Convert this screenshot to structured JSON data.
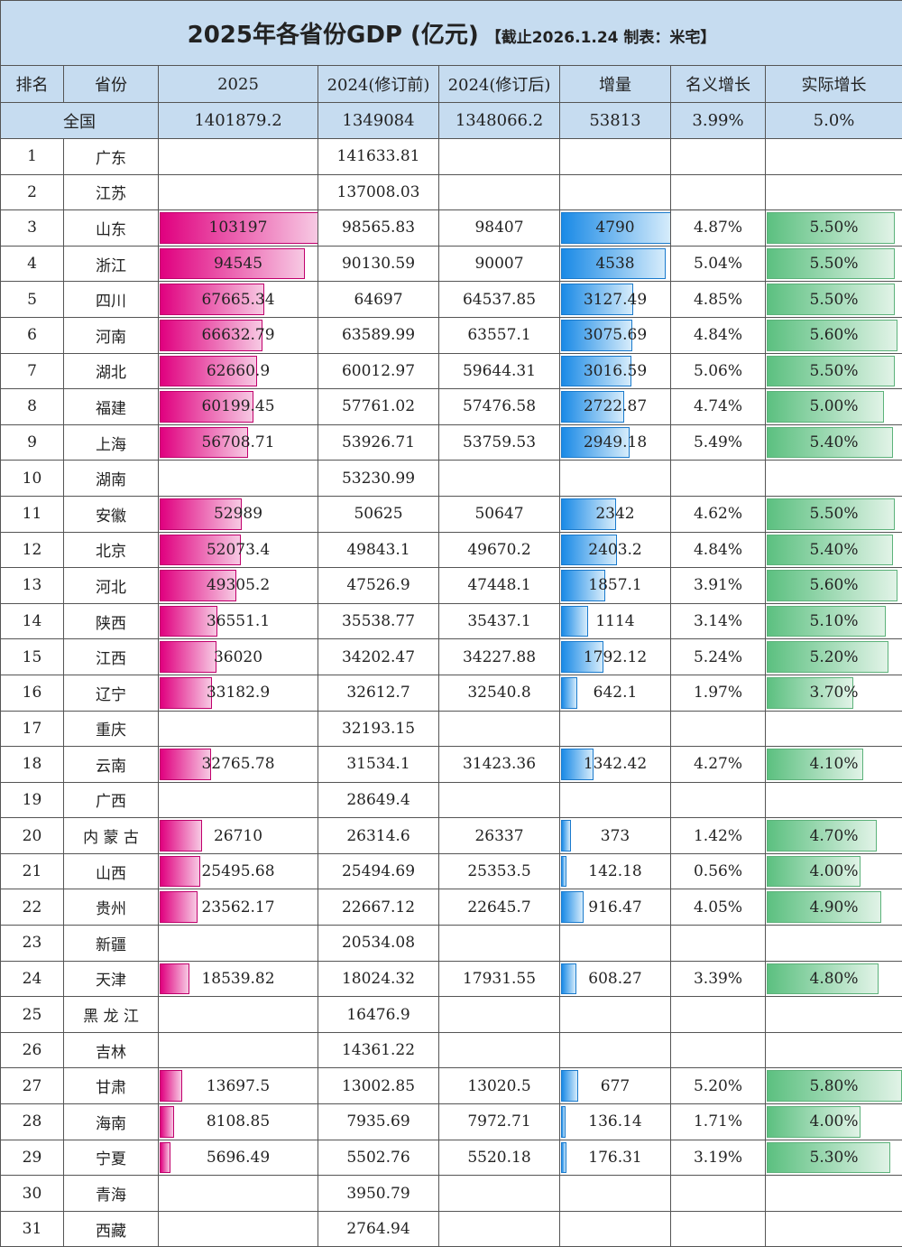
{
  "title": {
    "main": "2025年各省份GDP (亿元)",
    "sub": "【截止2026.1.24 制表：米宅】"
  },
  "headers": [
    "排名",
    "省份",
    "2025",
    "2024(修订前)",
    "2024(修订后)",
    "增量",
    "名义增长",
    "实际增长"
  ],
  "national": {
    "label": "全国",
    "gdp2025": "1401879.2",
    "gdp2024_before": "1349084",
    "gdp2024_after": "1348066.2",
    "increment": "53813",
    "nominal": "3.99%",
    "real": "5.0%"
  },
  "bar_colors": {
    "gdp2025": "#e0007f",
    "increment": "#1a8ae6",
    "real": "#5cc080"
  },
  "rows": [
    {
      "rank": "1",
      "province": "广东",
      "gdp2025": "",
      "gdp2024_before": "141633.81",
      "gdp2024_after": "",
      "increment": "",
      "nominal": "",
      "real": ""
    },
    {
      "rank": "2",
      "province": "江苏",
      "gdp2025": "",
      "gdp2024_before": "137008.03",
      "gdp2024_after": "",
      "increment": "",
      "nominal": "",
      "real": ""
    },
    {
      "rank": "3",
      "province": "山东",
      "gdp2025": "103197",
      "gdp2024_before": "98565.83",
      "gdp2024_after": "98407",
      "increment": "4790",
      "nominal": "4.87%",
      "real": "5.50%"
    },
    {
      "rank": "4",
      "province": "浙江",
      "gdp2025": "94545",
      "gdp2024_before": "90130.59",
      "gdp2024_after": "90007",
      "increment": "4538",
      "nominal": "5.04%",
      "real": "5.50%"
    },
    {
      "rank": "5",
      "province": "四川",
      "gdp2025": "67665.34",
      "gdp2024_before": "64697",
      "gdp2024_after": "64537.85",
      "increment": "3127.49",
      "nominal": "4.85%",
      "real": "5.50%"
    },
    {
      "rank": "6",
      "province": "河南",
      "gdp2025": "66632.79",
      "gdp2024_before": "63589.99",
      "gdp2024_after": "63557.1",
      "increment": "3075.69",
      "nominal": "4.84%",
      "real": "5.60%"
    },
    {
      "rank": "7",
      "province": "湖北",
      "gdp2025": "62660.9",
      "gdp2024_before": "60012.97",
      "gdp2024_after": "59644.31",
      "increment": "3016.59",
      "nominal": "5.06%",
      "real": "5.50%"
    },
    {
      "rank": "8",
      "province": "福建",
      "gdp2025": "60199.45",
      "gdp2024_before": "57761.02",
      "gdp2024_after": "57476.58",
      "increment": "2722.87",
      "nominal": "4.74%",
      "real": "5.00%"
    },
    {
      "rank": "9",
      "province": "上海",
      "gdp2025": "56708.71",
      "gdp2024_before": "53926.71",
      "gdp2024_after": "53759.53",
      "increment": "2949.18",
      "nominal": "5.49%",
      "real": "5.40%"
    },
    {
      "rank": "10",
      "province": "湖南",
      "gdp2025": "",
      "gdp2024_before": "53230.99",
      "gdp2024_after": "",
      "increment": "",
      "nominal": "",
      "real": ""
    },
    {
      "rank": "11",
      "province": "安徽",
      "gdp2025": "52989",
      "gdp2024_before": "50625",
      "gdp2024_after": "50647",
      "increment": "2342",
      "nominal": "4.62%",
      "real": "5.50%"
    },
    {
      "rank": "12",
      "province": "北京",
      "gdp2025": "52073.4",
      "gdp2024_before": "49843.1",
      "gdp2024_after": "49670.2",
      "increment": "2403.2",
      "nominal": "4.84%",
      "real": "5.40%"
    },
    {
      "rank": "13",
      "province": "河北",
      "gdp2025": "49305.2",
      "gdp2024_before": "47526.9",
      "gdp2024_after": "47448.1",
      "increment": "1857.1",
      "nominal": "3.91%",
      "real": "5.60%"
    },
    {
      "rank": "14",
      "province": "陕西",
      "gdp2025": "36551.1",
      "gdp2024_before": "35538.77",
      "gdp2024_after": "35437.1",
      "increment": "1114",
      "nominal": "3.14%",
      "real": "5.10%"
    },
    {
      "rank": "15",
      "province": "江西",
      "gdp2025": "36020",
      "gdp2024_before": "34202.47",
      "gdp2024_after": "34227.88",
      "increment": "1792.12",
      "nominal": "5.24%",
      "real": "5.20%"
    },
    {
      "rank": "16",
      "province": "辽宁",
      "gdp2025": "33182.9",
      "gdp2024_before": "32612.7",
      "gdp2024_after": "32540.8",
      "increment": "642.1",
      "nominal": "1.97%",
      "real": "3.70%"
    },
    {
      "rank": "17",
      "province": "重庆",
      "gdp2025": "",
      "gdp2024_before": "32193.15",
      "gdp2024_after": "",
      "increment": "",
      "nominal": "",
      "real": ""
    },
    {
      "rank": "18",
      "province": "云南",
      "gdp2025": "32765.78",
      "gdp2024_before": "31534.1",
      "gdp2024_after": "31423.36",
      "increment": "1342.42",
      "nominal": "4.27%",
      "real": "4.10%"
    },
    {
      "rank": "19",
      "province": "广西",
      "gdp2025": "",
      "gdp2024_before": "28649.4",
      "gdp2024_after": "",
      "increment": "",
      "nominal": "",
      "real": ""
    },
    {
      "rank": "20",
      "province": "内 蒙 古",
      "gdp2025": "26710",
      "gdp2024_before": "26314.6",
      "gdp2024_after": "26337",
      "increment": "373",
      "nominal": "1.42%",
      "real": "4.70%"
    },
    {
      "rank": "21",
      "province": "山西",
      "gdp2025": "25495.68",
      "gdp2024_before": "25494.69",
      "gdp2024_after": "25353.5",
      "increment": "142.18",
      "nominal": "0.56%",
      "real": "4.00%"
    },
    {
      "rank": "22",
      "province": "贵州",
      "gdp2025": "23562.17",
      "gdp2024_before": "22667.12",
      "gdp2024_after": "22645.7",
      "increment": "916.47",
      "nominal": "4.05%",
      "real": "4.90%"
    },
    {
      "rank": "23",
      "province": "新疆",
      "gdp2025": "",
      "gdp2024_before": "20534.08",
      "gdp2024_after": "",
      "increment": "",
      "nominal": "",
      "real": ""
    },
    {
      "rank": "24",
      "province": "天津",
      "gdp2025": "18539.82",
      "gdp2024_before": "18024.32",
      "gdp2024_after": "17931.55",
      "increment": "608.27",
      "nominal": "3.39%",
      "real": "4.80%"
    },
    {
      "rank": "25",
      "province": "黑 龙 江",
      "gdp2025": "",
      "gdp2024_before": "16476.9",
      "gdp2024_after": "",
      "increment": "",
      "nominal": "",
      "real": ""
    },
    {
      "rank": "26",
      "province": "吉林",
      "gdp2025": "",
      "gdp2024_before": "14361.22",
      "gdp2024_after": "",
      "increment": "",
      "nominal": "",
      "real": ""
    },
    {
      "rank": "27",
      "province": "甘肃",
      "gdp2025": "13697.5",
      "gdp2024_before": "13002.85",
      "gdp2024_after": "13020.5",
      "increment": "677",
      "nominal": "5.20%",
      "real": "5.80%"
    },
    {
      "rank": "28",
      "province": "海南",
      "gdp2025": "8108.85",
      "gdp2024_before": "7935.69",
      "gdp2024_after": "7972.71",
      "increment": "136.14",
      "nominal": "1.71%",
      "real": "4.00%"
    },
    {
      "rank": "29",
      "province": "宁夏",
      "gdp2025": "5696.49",
      "gdp2024_before": "5502.76",
      "gdp2024_after": "5520.18",
      "increment": "176.31",
      "nominal": "3.19%",
      "real": "5.30%"
    },
    {
      "rank": "30",
      "province": "青海",
      "gdp2025": "",
      "gdp2024_before": "3950.79",
      "gdp2024_after": "",
      "increment": "",
      "nominal": "",
      "real": ""
    },
    {
      "rank": "31",
      "province": "西藏",
      "gdp2025": "",
      "gdp2024_before": "2764.94",
      "gdp2024_after": "",
      "increment": "",
      "nominal": "",
      "real": ""
    }
  ]
}
